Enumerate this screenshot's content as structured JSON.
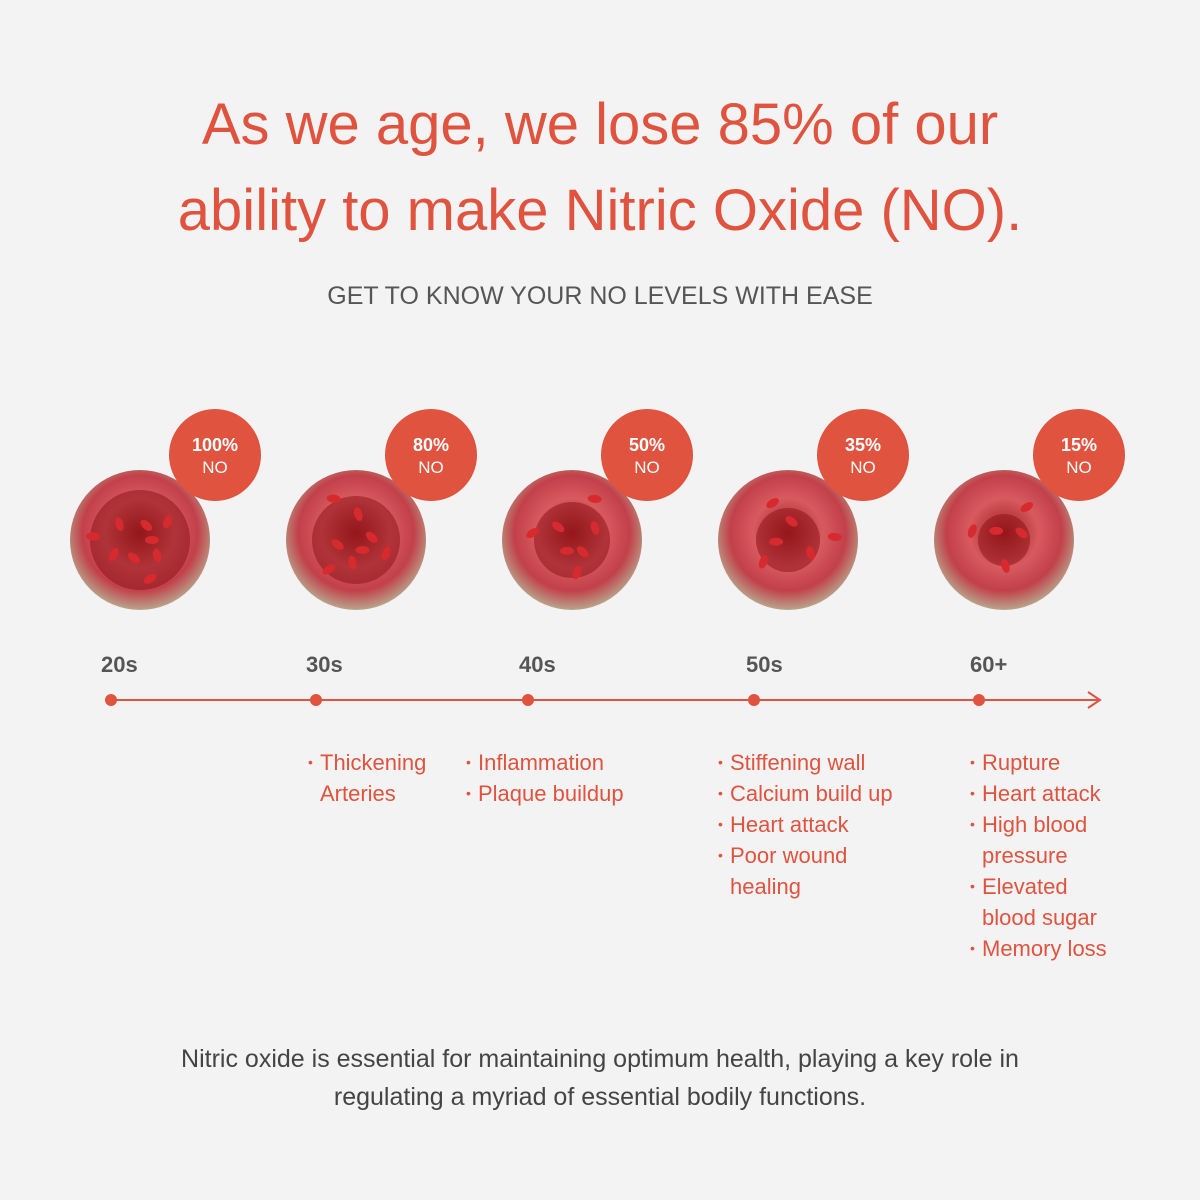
{
  "header": {
    "title_lines": [
      "As we age, we lose 85% of our",
      "ability to make Nitric Oxide (NO)."
    ],
    "subtitle": "GET TO KNOW YOUR NO LEVELS WITH EASE"
  },
  "stages": [
    {
      "level": "100%",
      "unit": "NO",
      "age": "20s",
      "conditions": []
    },
    {
      "level": "80%",
      "unit": "NO",
      "age": "30s",
      "conditions": [
        "Thickening Arteries"
      ]
    },
    {
      "level": "50%",
      "unit": "NO",
      "age": "40s",
      "conditions": [
        "Inflammation",
        "Plaque buildup"
      ]
    },
    {
      "level": "35%",
      "unit": "NO",
      "age": "50s",
      "conditions": [
        "Stiffening wall",
        "Calcium build up",
        "Heart attack",
        "Poor wound healing"
      ]
    },
    {
      "level": "15%",
      "unit": "NO",
      "age": "60+",
      "conditions": [
        "Rupture",
        "Heart attack",
        "High blood pressure",
        "Elevated blood sugar",
        "Memory loss"
      ]
    }
  ],
  "footer": {
    "text": "Nitric oxide is essential for maintaining optimum health, playing a key role in regulating a myriad of essential bodily functions."
  }
}
